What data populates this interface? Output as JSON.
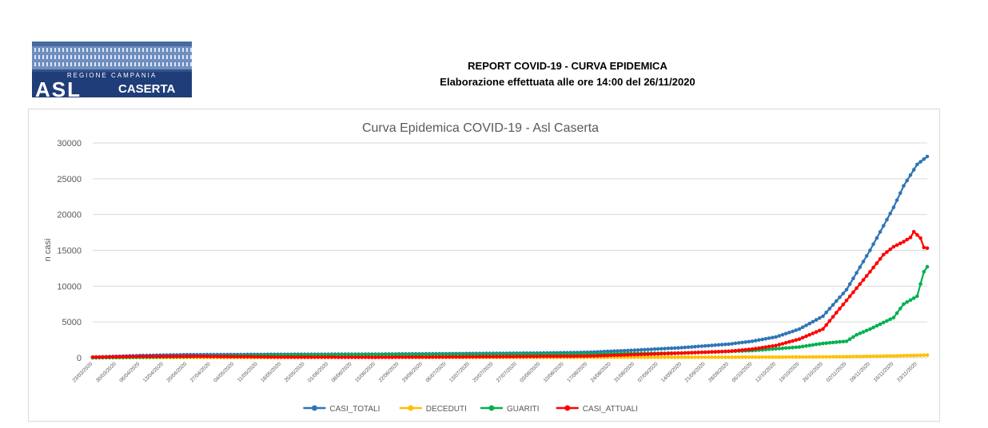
{
  "header": {
    "report_title": "REPORT COVID-19 - CURVA EPIDEMICA",
    "report_subtitle": "Elaborazione effettuata alle ore 14:00 del 26/11/2020",
    "logo": {
      "region_text": "REGIONE CAMPANIA",
      "asl_text": "ASL",
      "city_text": "CASERTA",
      "colors": {
        "navy": "#1f3d78",
        "blue_bg": "#5b7fb5"
      }
    }
  },
  "chart_data": {
    "type": "line",
    "title": "Curva Epidemica COVID-19 - Asl Caserta",
    "ylabel": "n casi",
    "xlabel": "",
    "ylim": [
      0,
      30000
    ],
    "yticks": [
      0,
      5000,
      10000,
      15000,
      20000,
      25000,
      30000
    ],
    "grid": true,
    "legend_position": "bottom",
    "x_start": "2020-03-23",
    "x_end": "2020-11-26",
    "xtick_labels": [
      "23/03/2020",
      "30/03/2020",
      "06/04/2020",
      "13/04/2020",
      "20/04/2020",
      "27/04/2020",
      "04/05/2020",
      "11/05/2020",
      "18/05/2020",
      "25/05/2020",
      "01/06/2020",
      "08/06/2020",
      "15/06/2020",
      "22/06/2020",
      "29/06/2020",
      "06/07/2020",
      "13/07/2020",
      "20/07/2020",
      "27/07/2020",
      "03/08/2020",
      "10/08/2020",
      "17/08/2020",
      "24/08/2020",
      "31/08/2020",
      "07/09/2020",
      "14/09/2020",
      "21/09/2020",
      "28/09/2020",
      "05/10/2020",
      "12/10/2020",
      "19/10/2020",
      "26/10/2020",
      "02/11/2020",
      "09/11/2020",
      "16/11/2020",
      "23/11/2020"
    ],
    "series": [
      {
        "name": "CASI_TOTALI",
        "color": "#2e75b6",
        "points": [
          [
            "2020-03-23",
            80
          ],
          [
            "2020-04-06",
            300
          ],
          [
            "2020-04-20",
            420
          ],
          [
            "2020-05-18",
            470
          ],
          [
            "2020-06-15",
            500
          ],
          [
            "2020-07-13",
            580
          ],
          [
            "2020-08-03",
            650
          ],
          [
            "2020-08-17",
            750
          ],
          [
            "2020-08-31",
            1050
          ],
          [
            "2020-09-14",
            1400
          ],
          [
            "2020-09-28",
            1900
          ],
          [
            "2020-10-05",
            2300
          ],
          [
            "2020-10-12",
            2900
          ],
          [
            "2020-10-19",
            4000
          ],
          [
            "2020-10-26",
            5800
          ],
          [
            "2020-11-02",
            9500
          ],
          [
            "2020-11-09",
            15000
          ],
          [
            "2020-11-16",
            21000
          ],
          [
            "2020-11-19",
            24000
          ],
          [
            "2020-11-23",
            27000
          ],
          [
            "2020-11-26",
            28100
          ]
        ]
      },
      {
        "name": "DECEDUTI",
        "color": "#ffc000",
        "points": [
          [
            "2020-03-23",
            5
          ],
          [
            "2020-04-20",
            40
          ],
          [
            "2020-06-15",
            55
          ],
          [
            "2020-08-17",
            60
          ],
          [
            "2020-09-28",
            70
          ],
          [
            "2020-10-19",
            100
          ],
          [
            "2020-11-02",
            140
          ],
          [
            "2020-11-16",
            250
          ],
          [
            "2020-11-26",
            370
          ]
        ]
      },
      {
        "name": "GUARITI",
        "color": "#00b050",
        "points": [
          [
            "2020-03-23",
            0
          ],
          [
            "2020-04-20",
            150
          ],
          [
            "2020-05-18",
            380
          ],
          [
            "2020-06-15",
            430
          ],
          [
            "2020-07-13",
            450
          ],
          [
            "2020-08-17",
            520
          ],
          [
            "2020-09-14",
            650
          ],
          [
            "2020-10-05",
            1000
          ],
          [
            "2020-10-19",
            1500
          ],
          [
            "2020-10-26",
            2000
          ],
          [
            "2020-11-02",
            2300
          ],
          [
            "2020-11-05",
            3200
          ],
          [
            "2020-11-09",
            4000
          ],
          [
            "2020-11-16",
            5600
          ],
          [
            "2020-11-19",
            7500
          ],
          [
            "2020-11-23",
            8600
          ],
          [
            "2020-11-25",
            12000
          ],
          [
            "2020-11-26",
            12700
          ]
        ]
      },
      {
        "name": "CASI_ATTUALI",
        "color": "#ff0000",
        "points": [
          [
            "2020-03-23",
            80
          ],
          [
            "2020-04-06",
            180
          ],
          [
            "2020-04-20",
            200
          ],
          [
            "2020-05-18",
            90
          ],
          [
            "2020-06-15",
            60
          ],
          [
            "2020-07-13",
            120
          ],
          [
            "2020-08-17",
            230
          ],
          [
            "2020-08-31",
            430
          ],
          [
            "2020-09-14",
            650
          ],
          [
            "2020-09-28",
            900
          ],
          [
            "2020-10-05",
            1200
          ],
          [
            "2020-10-12",
            1700
          ],
          [
            "2020-10-19",
            2600
          ],
          [
            "2020-10-26",
            4000
          ],
          [
            "2020-11-02",
            8000
          ],
          [
            "2020-11-09",
            12000
          ],
          [
            "2020-11-13",
            14400
          ],
          [
            "2020-11-16",
            15500
          ],
          [
            "2020-11-19",
            16200
          ],
          [
            "2020-11-21",
            16800
          ],
          [
            "2020-11-22",
            17600
          ],
          [
            "2020-11-24",
            16700
          ],
          [
            "2020-11-25",
            15400
          ],
          [
            "2020-11-26",
            15300
          ]
        ]
      }
    ]
  }
}
